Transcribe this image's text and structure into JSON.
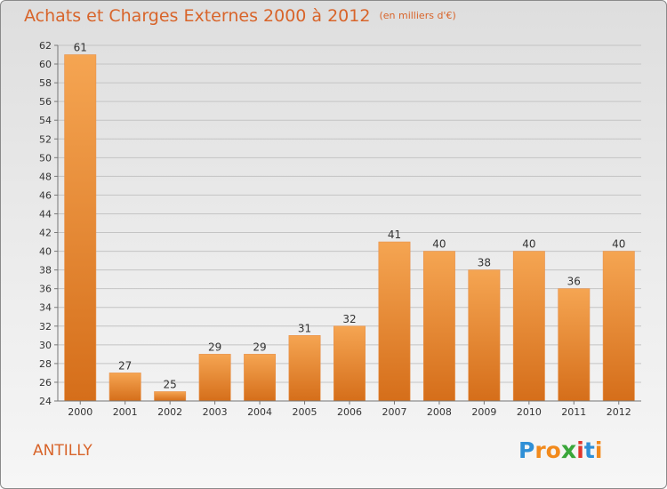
{
  "title": "Achats et Charges Externes 2000 à 2012",
  "subtitle": "(en milliers d'€)",
  "town": "ANTILLY",
  "logo_text": "Proxiti",
  "colors": {
    "title": "#d8642a",
    "bar_top": "#f5a552",
    "bar_bottom": "#d56e1a",
    "logo": [
      "#2f8fd6",
      "#f28a1c",
      "#f28a1c",
      "#3aa63a",
      "#e0362c",
      "#2f8fd6",
      "#f28a1c"
    ]
  },
  "chart_data": {
    "type": "bar",
    "categories": [
      "2000",
      "2001",
      "2002",
      "2003",
      "2004",
      "2005",
      "2006",
      "2007",
      "2008",
      "2009",
      "2010",
      "2011",
      "2012"
    ],
    "values": [
      61,
      27,
      25,
      29,
      29,
      31,
      32,
      41,
      40,
      38,
      40,
      36,
      40
    ],
    "ylim": [
      24,
      62
    ],
    "yticks": [
      "24",
      "26",
      "28",
      "30",
      "32",
      "34",
      "36",
      "38",
      "40",
      "42",
      "44",
      "46",
      "48",
      "50",
      "52",
      "54",
      "56",
      "58",
      "60",
      "62"
    ],
    "grid": true,
    "xlabel": "",
    "ylabel": ""
  }
}
